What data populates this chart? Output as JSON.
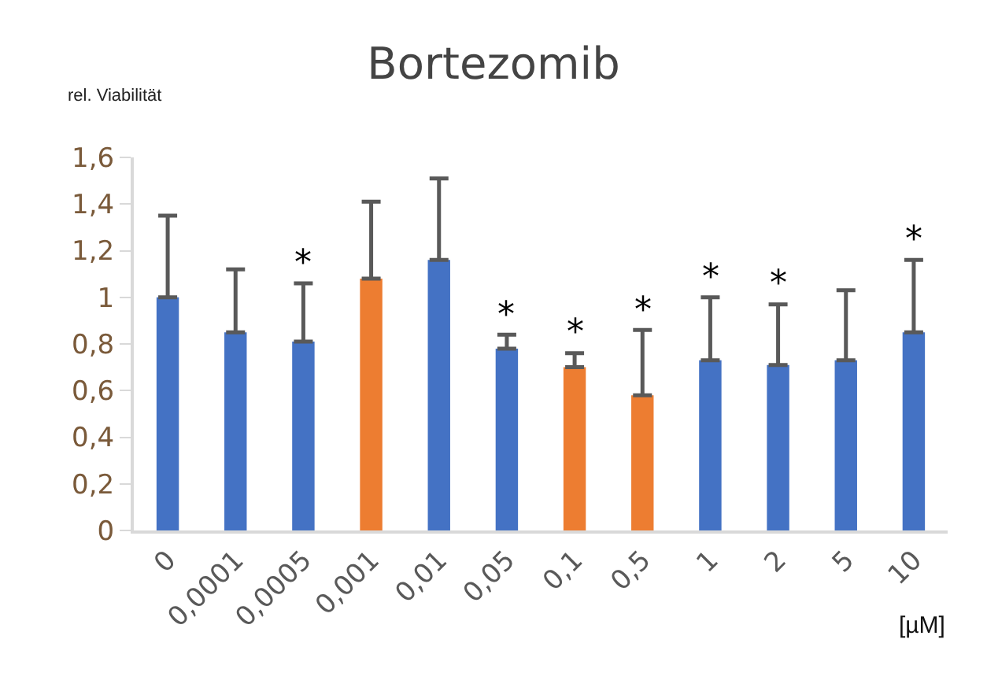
{
  "chart_data": {
    "type": "bar",
    "title": "Bortezomib",
    "ylabel": "rel. Viabilität",
    "xlabel": "[µM]",
    "categories": [
      "0",
      "0,0001",
      "0,0005",
      "0,001",
      "0,01",
      "0,05",
      "0,1",
      "0,5",
      "1",
      "2",
      "5",
      "10"
    ],
    "values": [
      1.0,
      0.85,
      0.81,
      1.08,
      1.16,
      0.78,
      0.7,
      0.58,
      0.73,
      0.71,
      0.73,
      0.85
    ],
    "colors": [
      "#4472c4",
      "#4472c4",
      "#4472c4",
      "#ed7d31",
      "#4472c4",
      "#4472c4",
      "#ed7d31",
      "#ed7d31",
      "#4472c4",
      "#4472c4",
      "#4472c4",
      "#4472c4"
    ],
    "errors": [
      [
        1.0,
        1.35
      ],
      [
        0.85,
        1.12
      ],
      [
        0.81,
        1.06
      ],
      [
        1.08,
        1.41
      ],
      [
        1.16,
        1.51
      ],
      [
        0.78,
        0.84
      ],
      [
        0.7,
        0.76
      ],
      [
        0.58,
        0.86
      ],
      [
        0.73,
        1.0
      ],
      [
        0.71,
        0.97
      ],
      [
        0.73,
        1.03
      ],
      [
        0.85,
        1.16
      ]
    ],
    "ylim": [
      0,
      1.6
    ],
    "yticks": [
      {
        "value": 0,
        "label": "0"
      },
      {
        "value": 0.2,
        "label": "0,2"
      },
      {
        "value": 0.4,
        "label": "0,4"
      },
      {
        "value": 0.6,
        "label": "0,6"
      },
      {
        "value": 0.8,
        "label": "0,8"
      },
      {
        "value": 1,
        "label": "1"
      },
      {
        "value": 1.2,
        "label": "1,2"
      },
      {
        "value": 1.4,
        "label": "1,4"
      },
      {
        "value": 1.6,
        "label": "1,6"
      }
    ],
    "grid": false,
    "annotations": [
      {
        "text": "*",
        "x": "0,0005",
        "y": 1.06
      },
      {
        "text": "*",
        "x": "0,05",
        "y": 0.84
      },
      {
        "text": "*",
        "x": "0,1",
        "y": 0.76
      },
      {
        "text": "*",
        "x": "0,5",
        "y": 0.86
      },
      {
        "text": "*",
        "x": "1",
        "y": 1.0
      },
      {
        "text": "*",
        "x": "2",
        "y": 0.97
      },
      {
        "text": "*",
        "x": "10",
        "y": 1.16
      }
    ]
  }
}
